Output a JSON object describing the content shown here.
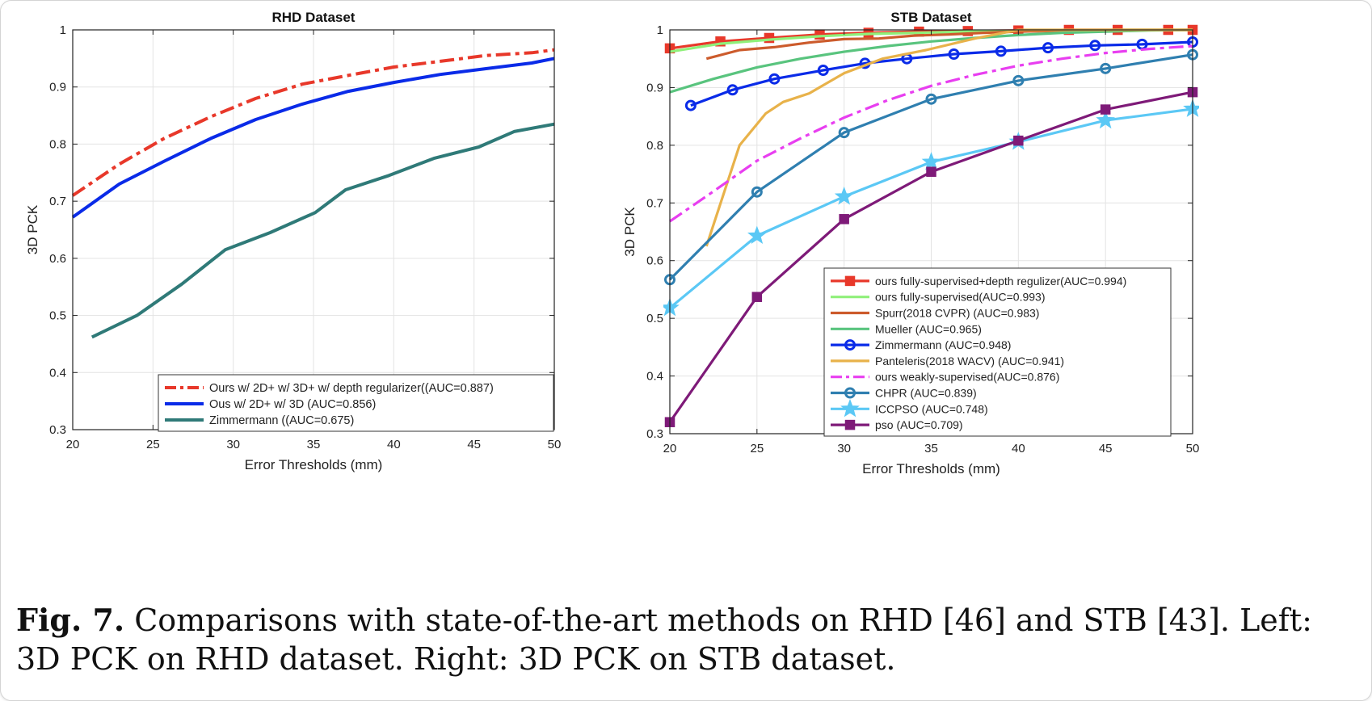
{
  "caption": {
    "label": "Fig. 7.",
    "text": "Comparisons with state-of-the-art methods on RHD [46] and STB [43]. Left: 3D PCK on RHD dataset. Right: 3D PCK on STB dataset."
  },
  "chart_data": [
    {
      "type": "line",
      "title": "RHD Dataset",
      "xlabel": "Error Thresholds (mm)",
      "ylabel": "3D PCK",
      "xlim": [
        20,
        50
      ],
      "ylim": [
        0.3,
        1
      ],
      "xticks": [
        20,
        25,
        30,
        35,
        40,
        45,
        50
      ],
      "yticks": [
        0.3,
        0.4,
        0.5,
        0.6,
        0.7,
        0.8,
        0.9,
        1
      ],
      "grid": true,
      "legend_position": "bottom-right",
      "series": [
        {
          "name": "Ours w/ 2D+ w/ 3D+ w/ depth regularizer((AUC=0.887)",
          "color": "#e8382a",
          "dash": "dashdot",
          "marker": "none",
          "x": [
            20,
            22.9,
            25.7,
            28.6,
            31.4,
            34.3,
            37.1,
            40,
            42.9,
            45.7,
            48.6,
            50
          ],
          "y": [
            0.71,
            0.765,
            0.81,
            0.848,
            0.88,
            0.905,
            0.92,
            0.935,
            0.945,
            0.955,
            0.96,
            0.965
          ]
        },
        {
          "name": "Ous w/ 2D+ w/ 3D (AUC=0.856)",
          "color": "#0a2be8",
          "dash": "solid",
          "marker": "none",
          "x": [
            20,
            22.9,
            25.7,
            28.6,
            31.4,
            34.3,
            37.1,
            40,
            42.9,
            45.7,
            48.6,
            50
          ],
          "y": [
            0.672,
            0.73,
            0.77,
            0.81,
            0.843,
            0.87,
            0.892,
            0.908,
            0.922,
            0.932,
            0.942,
            0.95
          ]
        },
        {
          "name": "Zimmermann ((AUC=0.675)",
          "color": "#2f7a78",
          "dash": "solid",
          "marker": "none",
          "x": [
            21.2,
            24,
            26.8,
            29.5,
            32.3,
            35.1,
            37,
            39.7,
            42.5,
            45.3,
            47.5,
            50
          ],
          "y": [
            0.462,
            0.5,
            0.555,
            0.615,
            0.645,
            0.68,
            0.72,
            0.745,
            0.775,
            0.795,
            0.822,
            0.835
          ]
        }
      ]
    },
    {
      "type": "line",
      "title": "STB Dataset",
      "xlabel": "Error Thresholds (mm)",
      "ylabel": "3D PCK",
      "xlim": [
        20,
        50
      ],
      "ylim": [
        0.3,
        1
      ],
      "xticks": [
        20,
        25,
        30,
        35,
        40,
        45,
        50
      ],
      "yticks": [
        0.3,
        0.4,
        0.5,
        0.6,
        0.7,
        0.8,
        0.9,
        1
      ],
      "grid": true,
      "legend_position": "bottom-right",
      "series": [
        {
          "name": "ours fully-supervised+depth regulizer(AUC=0.994)",
          "color": "#e8382a",
          "dash": "solid",
          "marker": "square",
          "x": [
            20,
            22.9,
            25.7,
            28.6,
            31.4,
            34.3,
            37.1,
            40,
            42.9,
            45.7,
            48.6,
            50
          ],
          "y": [
            0.968,
            0.98,
            0.986,
            0.992,
            0.995,
            0.997,
            0.998,
            0.999,
            1,
            1,
            1,
            1
          ]
        },
        {
          "name": "ours fully-supervised(AUC=0.993)",
          "color": "#8ff07a",
          "dash": "solid",
          "marker": "none",
          "x": [
            20,
            22.9,
            25.7,
            28.6,
            31.4,
            34.3,
            37.1,
            40,
            42.9,
            45.7,
            48.6,
            50
          ],
          "y": [
            0.962,
            0.976,
            0.983,
            0.989,
            0.993,
            0.995,
            0.997,
            0.998,
            0.999,
            1,
            1,
            1
          ]
        },
        {
          "name": "Spurr(2018 CVPR) (AUC=0.983)",
          "color": "#cc5b2c",
          "dash": "solid",
          "marker": "none",
          "x": [
            22.1,
            24,
            26,
            28,
            30,
            32,
            34,
            36,
            38,
            40,
            42,
            45,
            50
          ],
          "y": [
            0.95,
            0.965,
            0.97,
            0.978,
            0.984,
            0.985,
            0.99,
            0.992,
            0.995,
            0.997,
            0.998,
            0.999,
            1
          ]
        },
        {
          "name": "Mueller (AUC=0.965)",
          "color": "#59c47e",
          "dash": "solid",
          "marker": "none",
          "x": [
            20,
            22.5,
            25,
            27.5,
            30,
            32.5,
            35,
            37.5,
            40,
            42.5,
            45,
            47.5,
            50
          ],
          "y": [
            0.892,
            0.915,
            0.935,
            0.95,
            0.962,
            0.972,
            0.98,
            0.986,
            0.991,
            0.995,
            0.997,
            0.999,
            1
          ]
        },
        {
          "name": "Zimmermann (AUC=0.948)",
          "color": "#0a2be8",
          "dash": "solid",
          "marker": "circle",
          "x": [
            21.2,
            23.6,
            26,
            28.8,
            31.2,
            33.6,
            36.3,
            39,
            41.7,
            44.4,
            47.1,
            50
          ],
          "y": [
            0.869,
            0.896,
            0.915,
            0.93,
            0.942,
            0.95,
            0.958,
            0.963,
            0.969,
            0.973,
            0.975,
            0.979
          ]
        },
        {
          "name": "Panteleris(2018 WACV) (AUC=0.941)",
          "color": "#e8b24a",
          "dash": "solid",
          "marker": "none",
          "x": [
            22.1,
            24,
            25.5,
            26.5,
            28,
            30,
            32.2,
            34.7,
            37.5,
            40,
            42.5,
            45,
            47.5,
            50
          ],
          "y": [
            0.625,
            0.8,
            0.855,
            0.875,
            0.89,
            0.925,
            0.95,
            0.965,
            0.985,
            1,
            1,
            1,
            1,
            1
          ]
        },
        {
          "name": "ours weakly-supervised(AUC=0.876)",
          "color": "#e83ef0",
          "dash": "dashdot",
          "marker": "none",
          "x": [
            20,
            22.5,
            25,
            27.5,
            30,
            32.5,
            35,
            37.5,
            40,
            42.5,
            45,
            47.5,
            50
          ],
          "y": [
            0.668,
            0.72,
            0.773,
            0.812,
            0.848,
            0.878,
            0.903,
            0.922,
            0.938,
            0.95,
            0.96,
            0.967,
            0.972
          ]
        },
        {
          "name": "CHPR (AUC=0.839)",
          "color": "#2f7fb0",
          "dash": "solid",
          "marker": "circle",
          "x": [
            20,
            25,
            30,
            35,
            40,
            45,
            50
          ],
          "y": [
            0.567,
            0.719,
            0.822,
            0.88,
            0.912,
            0.933,
            0.957
          ]
        },
        {
          "name": "ICCPSO (AUC=0.748)",
          "color": "#5bc8f5",
          "dash": "solid",
          "marker": "star",
          "x": [
            20,
            25,
            30,
            35,
            40,
            45,
            50
          ],
          "y": [
            0.518,
            0.643,
            0.711,
            0.771,
            0.806,
            0.843,
            0.863
          ]
        },
        {
          "name": "pso (AUC=0.709)",
          "color": "#7e1a78",
          "dash": "solid",
          "marker": "square",
          "x": [
            20,
            25,
            30,
            35,
            40,
            45,
            50
          ],
          "y": [
            0.32,
            0.537,
            0.672,
            0.754,
            0.808,
            0.862,
            0.892
          ]
        }
      ]
    }
  ]
}
